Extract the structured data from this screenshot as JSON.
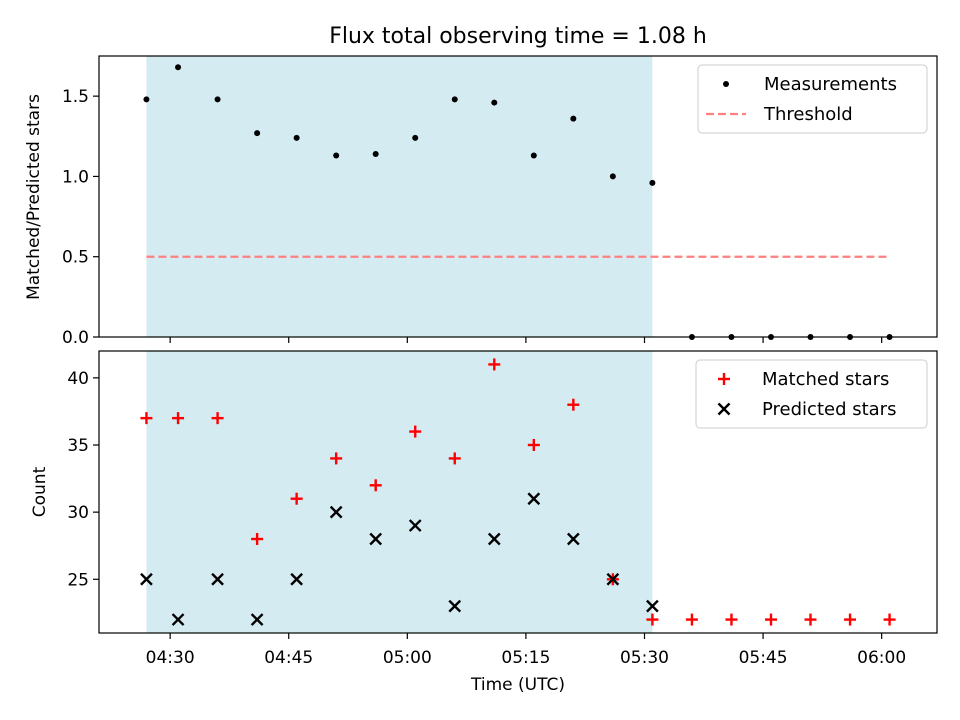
{
  "chart_data": [
    {
      "type": "scatter",
      "title": "Flux total observing time = 1.08 h",
      "xlabel": "",
      "ylabel": "Matched/Predicted stars",
      "ylim": [
        0,
        1.75
      ],
      "yticks": [
        "0.0",
        "0.5",
        "1.0",
        "1.5"
      ],
      "shaded_interval": [
        "04:27",
        "05:31"
      ],
      "series": [
        {
          "name": "Measurements",
          "color": "#000000",
          "marker": "dot",
          "x": [
            "04:27",
            "04:31",
            "04:36",
            "04:41",
            "04:46",
            "04:51",
            "04:56",
            "05:01",
            "05:06",
            "05:11",
            "05:16",
            "05:21",
            "05:26",
            "05:31",
            "05:36",
            "05:41",
            "05:46",
            "05:51",
            "05:56",
            "06:01"
          ],
          "y": [
            1.48,
            1.68,
            1.48,
            1.27,
            1.24,
            1.13,
            1.14,
            1.24,
            1.48,
            1.46,
            1.13,
            1.36,
            1.0,
            0.96,
            0,
            0,
            0,
            0,
            0,
            0
          ]
        },
        {
          "name": "Threshold",
          "color": "#ff8080",
          "style": "dashed",
          "x": [
            "04:27",
            "06:01"
          ],
          "y": [
            0.5,
            0.5
          ]
        }
      ],
      "legend_position": "top-right"
    },
    {
      "type": "scatter",
      "xlabel": "Time (UTC)",
      "ylabel": "Count",
      "ylim": [
        21,
        42
      ],
      "yticks": [
        "25",
        "30",
        "35",
        "40"
      ],
      "xticks": [
        "04:30",
        "04:45",
        "05:00",
        "05:15",
        "05:30",
        "05:45",
        "06:00"
      ],
      "shaded_interval": [
        "04:27",
        "05:31"
      ],
      "series": [
        {
          "name": "Matched stars",
          "color": "#ff0000",
          "marker": "plus",
          "x": [
            "04:27",
            "04:31",
            "04:36",
            "04:41",
            "04:46",
            "04:51",
            "04:56",
            "05:01",
            "05:06",
            "05:11",
            "05:16",
            "05:21",
            "05:26",
            "05:31",
            "05:36",
            "05:41",
            "05:46",
            "05:51",
            "05:56",
            "06:01"
          ],
          "y": [
            37,
            37,
            37,
            28,
            31,
            34,
            32,
            36,
            34,
            41,
            35,
            38,
            25,
            22,
            22,
            22,
            22,
            22,
            22,
            22
          ]
        },
        {
          "name": "Predicted stars",
          "color": "#000000",
          "marker": "x",
          "x": [
            "04:27",
            "04:31",
            "04:36",
            "04:41",
            "04:46",
            "04:51",
            "04:56",
            "05:01",
            "05:06",
            "05:11",
            "05:16",
            "05:21",
            "05:26",
            "05:31"
          ],
          "y": [
            25,
            22,
            25,
            22,
            25,
            30,
            28,
            29,
            23,
            28,
            31,
            28,
            25,
            23
          ]
        }
      ],
      "legend_position": "top-right"
    }
  ]
}
